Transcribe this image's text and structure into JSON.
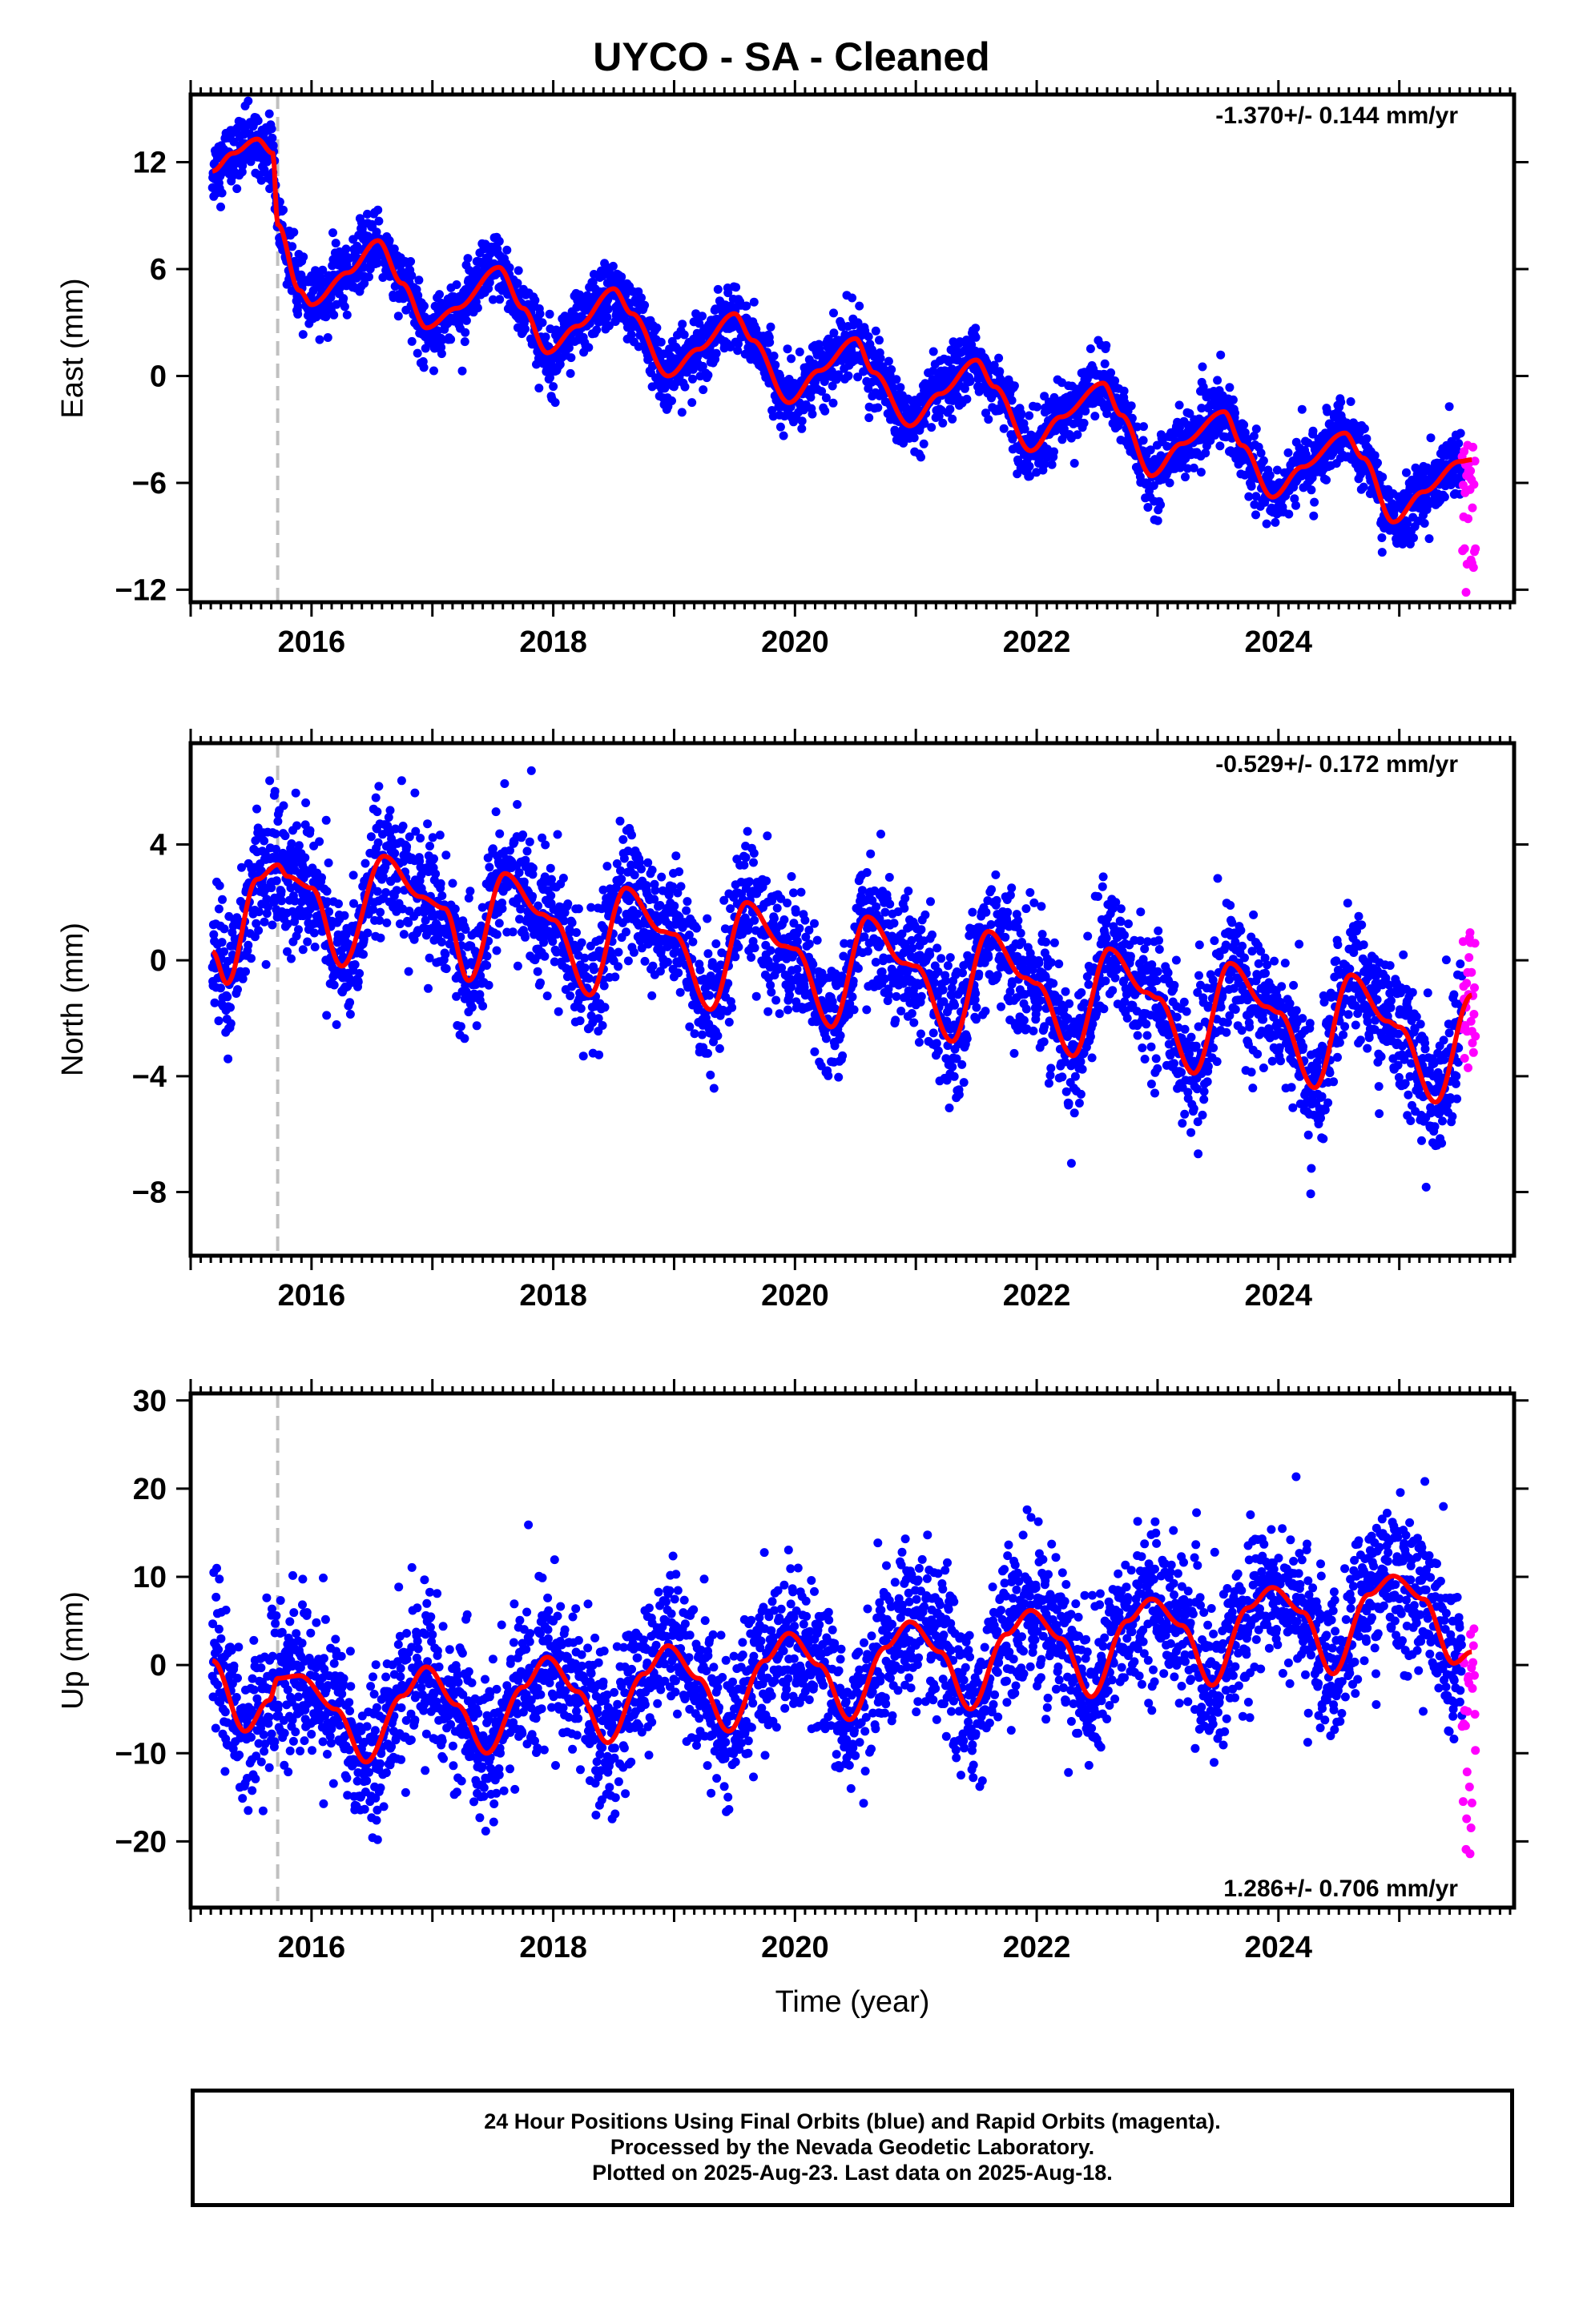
{
  "title": "UYCO  - SA - Cleaned",
  "colors": {
    "final": "#0000ff",
    "rapid": "#ff00ff",
    "model": "#ff0000",
    "offset": "#c0c0c0"
  },
  "footer": {
    "line1": "24 Hour Positions Using Final Orbits (blue) and Rapid Orbits (magenta).",
    "line2": "Processed by the Nevada Geodetic Laboratory.",
    "line3": "Plotted on 2025-Aug-23. Last data on 2025-Aug-18."
  },
  "chart_data": [
    {
      "type": "scatter",
      "ylabel": "East (mm)",
      "xlabel": "",
      "rate": "-1.370+/- 0.144 mm/yr",
      "xlim": [
        2015.0,
        2025.95
      ],
      "ylim": [
        -12.7,
        15.8
      ],
      "yticks": [
        -12,
        -6,
        0,
        6,
        12
      ],
      "xticks": [
        2016,
        2018,
        2020,
        2022,
        2024
      ],
      "offset_line_x": 2015.72,
      "model": {
        "x": [
          2015.18,
          2015.35,
          2015.55,
          2015.68,
          2015.72,
          2015.9,
          2016.0,
          2016.3,
          2016.55,
          2016.75,
          2016.95,
          2017.2,
          2017.55,
          2017.75,
          2017.95,
          2018.2,
          2018.5,
          2018.65,
          2018.95,
          2019.2,
          2019.5,
          2019.65,
          2019.95,
          2020.2,
          2020.5,
          2020.65,
          2020.95,
          2021.2,
          2021.5,
          2021.65,
          2021.95,
          2022.2,
          2022.55,
          2022.7,
          2022.95,
          2023.2,
          2023.55,
          2023.7,
          2023.95,
          2024.2,
          2024.55,
          2024.7,
          2024.95,
          2025.2,
          2025.5,
          2025.6
        ],
        "y": [
          11.5,
          12.5,
          13.3,
          12.5,
          8.5,
          4.8,
          4.0,
          5.8,
          7.6,
          5.2,
          2.7,
          3.8,
          6.1,
          3.8,
          1.3,
          2.8,
          4.9,
          3.5,
          0.0,
          1.5,
          3.5,
          2.0,
          -1.5,
          0.3,
          2.1,
          0.2,
          -2.8,
          -1.0,
          0.9,
          -0.6,
          -4.2,
          -2.3,
          -0.4,
          -2.2,
          -5.6,
          -3.8,
          -2.0,
          -3.9,
          -6.8,
          -5.1,
          -3.2,
          -4.6,
          -8.2,
          -6.5,
          -4.8,
          -4.7
        ]
      },
      "scatter_sd": 0.9,
      "rapid": {
        "x_range": [
          2025.52,
          2025.63
        ],
        "y_range": [
          -12.4,
          -3.8
        ]
      }
    },
    {
      "type": "scatter",
      "ylabel": "North (mm)",
      "xlabel": "",
      "rate": "-0.529+/- 0.172 mm/yr",
      "xlim": [
        2015.0,
        2025.95
      ],
      "ylim": [
        -10.2,
        7.5
      ],
      "yticks": [
        -8,
        -4,
        0,
        4
      ],
      "xticks": [
        2016,
        2018,
        2020,
        2022,
        2024
      ],
      "offset_line_x": 2015.72,
      "model": {
        "x": [
          2015.18,
          2015.3,
          2015.55,
          2015.72,
          2015.8,
          2016.0,
          2016.25,
          2016.6,
          2016.9,
          2017.1,
          2017.3,
          2017.6,
          2017.9,
          2018.0,
          2018.3,
          2018.6,
          2018.9,
          2019.0,
          2019.3,
          2019.6,
          2019.9,
          2020.0,
          2020.3,
          2020.6,
          2020.9,
          2021.0,
          2021.3,
          2021.6,
          2021.9,
          2022.0,
          2022.3,
          2022.6,
          2022.9,
          2023.0,
          2023.3,
          2023.6,
          2023.9,
          2024.0,
          2024.3,
          2024.6,
          2024.9,
          2025.0,
          2025.3,
          2025.6
        ],
        "y": [
          0.3,
          -0.8,
          2.8,
          3.3,
          2.9,
          2.5,
          -0.2,
          3.6,
          2.2,
          1.8,
          -0.7,
          3.0,
          1.6,
          1.4,
          -1.2,
          2.5,
          1.0,
          0.9,
          -1.7,
          2.0,
          0.5,
          0.4,
          -2.3,
          1.5,
          -0.1,
          -0.2,
          -2.8,
          1.0,
          -0.6,
          -0.8,
          -3.3,
          0.4,
          -1.1,
          -1.3,
          -3.9,
          -0.1,
          -1.6,
          -1.8,
          -4.4,
          -0.5,
          -2.1,
          -2.3,
          -4.9,
          -1.2
        ]
      },
      "scatter_sd": 1.1,
      "rapid": {
        "x_range": [
          2025.52,
          2025.63
        ],
        "y_range": [
          -4.0,
          1.4
        ]
      }
    },
    {
      "type": "scatter",
      "ylabel": "Up (mm)",
      "xlabel": "Time (year)",
      "rate": "1.286+/- 0.706 mm/yr",
      "xlim": [
        2015.0,
        2025.95
      ],
      "ylim": [
        -27.5,
        30.8
      ],
      "yticks": [
        -20,
        -10,
        0,
        10,
        20,
        30
      ],
      "xticks": [
        2016,
        2018,
        2020,
        2022,
        2024
      ],
      "offset_line_x": 2015.72,
      "model": {
        "x": [
          2015.18,
          2015.45,
          2015.65,
          2015.72,
          2015.9,
          2016.2,
          2016.45,
          2016.75,
          2016.95,
          2017.2,
          2017.45,
          2017.75,
          2017.95,
          2018.2,
          2018.45,
          2018.75,
          2018.95,
          2019.2,
          2019.45,
          2019.75,
          2019.95,
          2020.2,
          2020.45,
          2020.75,
          2020.95,
          2021.2,
          2021.45,
          2021.75,
          2021.95,
          2022.2,
          2022.45,
          2022.75,
          2022.95,
          2023.2,
          2023.45,
          2023.75,
          2023.95,
          2024.2,
          2024.45,
          2024.75,
          2024.95,
          2025.2,
          2025.45,
          2025.6
        ],
        "y": [
          0.5,
          -7.5,
          -4.0,
          -1.5,
          -1.2,
          -5.0,
          -11.0,
          -3.5,
          -0.2,
          -4.5,
          -10.0,
          -2.5,
          0.9,
          -3.0,
          -8.8,
          -1.0,
          2.2,
          -1.5,
          -7.5,
          0.5,
          3.6,
          0.0,
          -6.2,
          2.0,
          4.9,
          1.5,
          -5.0,
          3.5,
          6.2,
          3.0,
          -3.6,
          5.0,
          7.5,
          4.5,
          -2.3,
          6.5,
          8.8,
          6.0,
          -1.0,
          8.0,
          10.1,
          7.5,
          0.2,
          1.5
        ]
      },
      "scatter_sd": 4.2,
      "rapid": {
        "x_range": [
          2025.52,
          2025.63
        ],
        "y_range": [
          -22.5,
          5.0
        ]
      }
    }
  ]
}
